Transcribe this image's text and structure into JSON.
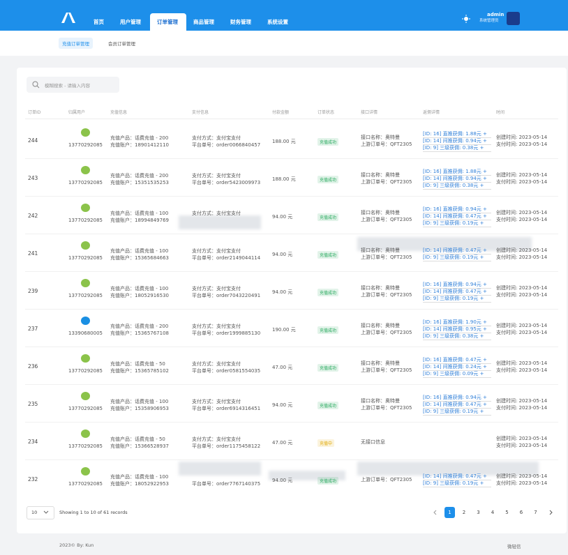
{
  "nav": {
    "menu": [
      "首页",
      "用户管理",
      "订单管理",
      "商品管理",
      "财务管理",
      "系统设置"
    ],
    "active": 2,
    "user": "admin",
    "role": "系统管理员"
  },
  "tabs": [
    "充值订单管理",
    "会员订单管理"
  ],
  "active_tab": 0,
  "search": "模糊搜索 - 请输入内容",
  "headers": [
    "订单ID",
    "归属用户",
    "充值信息",
    "支付信息",
    "付款金额",
    "订单状态",
    "接口详情",
    "返佣详情",
    "时间"
  ],
  "rows": [
    {
      "id": "244",
      "user": "13770292085",
      "icon_color": "#8bc34a",
      "product": "充值产品：话费充值 - 200",
      "account": "充值账户：18901412110",
      "pay": "支付方式：支付宝支付",
      "order": "平台单号：order0066840457",
      "amount": "188.00 元",
      "status": "充值成功",
      "status_color": "#22a85a",
      "api": [
        "接口名称：奥特曼",
        "上游订单号：QFT2305"
      ],
      "commission": [
        "[ID: 16] 直推获佣: 1.88元 +",
        "[ID: 14] 间推获佣: 0.94元 +",
        "[ID: 9] 三级获佣: 0.38元 +"
      ],
      "time": [
        "创建时间: 2023-05-14",
        "支付时间: 2023-05-14"
      ]
    },
    {
      "id": "243",
      "user": "13770292085",
      "icon_color": "#8bc34a",
      "product": "充值产品：话费充值 - 200",
      "account": "充值账户：15351535253",
      "pay": "支付方式：支付宝支付",
      "order": "平台单号：order5423009973",
      "amount": "188.00 元",
      "status": "充值成功",
      "status_color": "#22a85a",
      "api": [
        "接口名称：奥特曼",
        "上游订单号：QFT2305"
      ],
      "commission": [
        "[ID: 16] 直推获佣: 1.88元 +",
        "[ID: 14] 间推获佣: 0.94元 +",
        "[ID: 9] 三级获佣: 0.38元 +"
      ],
      "time": [
        "创建时间: 2023-05-14",
        "支付时间: 2023-05-14"
      ]
    },
    {
      "id": "242",
      "user": "13770292085",
      "icon_color": "#8bc34a",
      "product": "充值产品：话费充值 - 100",
      "account": "充值账户：18994849769",
      "pay": "支付方式：支付宝支付",
      "amount": "94.00 元",
      "status": "充值成功",
      "status_color": "#22a85a",
      "api": [
        "接口名称：奥特曼",
        "上游订单号：QFT2305"
      ],
      "commission": [
        "[ID: 16] 直推获佣: 0.94元 +",
        "[ID: 14] 间推获佣: 0.47元 +",
        "[ID: 9] 三级获佣: 0.19元 +"
      ],
      "time": [
        "创建时间: 2023-05-14",
        "支付时间: 2023-05-14"
      ]
    },
    {
      "id": "241",
      "user": "13770292085",
      "icon_color": "#8bc34a",
      "product": "充值产品：话费充值 - 100",
      "account": "充值账户：15365684663",
      "pay": "支付方式：支付宝支付",
      "order": "平台单号：order2149044114",
      "amount": "94.00 元",
      "status": "充值成功",
      "status_color": "#22a85a",
      "api": [
        "接口名称：奥特曼",
        "上游订单号：QFT2305"
      ],
      "commission": [
        "[ID: 14] 间推获佣: 0.47元 +",
        "[ID: 9] 三级获佣: 0.19元 +"
      ],
      "time": [
        "创建时间: 2023-05-14",
        "支付时间: 2023-05-14"
      ]
    },
    {
      "id": "239",
      "user": "13770292085",
      "icon_color": "#8bc34a",
      "product": "充值产品：话费充值 - 100",
      "account": "充值账户：18052916530",
      "pay": "支付方式：支付宝支付",
      "order": "平台单号：order7043220491",
      "amount": "94.00 元",
      "status": "充值成功",
      "status_color": "#22a85a",
      "api": [
        "接口名称：奥特曼",
        "上游订单号：QFT2305"
      ],
      "commission": [
        "[ID: 16] 直推获佣: 0.94元 +",
        "[ID: 14] 间推获佣: 0.47元 +",
        "[ID: 9] 三级获佣: 0.19元 +"
      ],
      "time": [
        "创建时间: 2023-05-14",
        "支付时间: 2023-05-14"
      ]
    },
    {
      "id": "237",
      "user": "13390680005",
      "icon_color": "#1a8fe3",
      "product": "充值产品：话费充值 - 200",
      "account": "充值账户：15365767108",
      "pay": "支付方式：支付宝支付",
      "order": "平台单号：order1999885130",
      "amount": "190.00 元",
      "status": "充值成功",
      "status_color": "#22a85a",
      "api": [
        "接口名称：奥特曼",
        "上游订单号：QFT2305"
      ],
      "commission": [
        "[ID: 16] 直推获佣: 1.90元 +",
        "[ID: 14] 间推获佣: 0.95元 +",
        "[ID: 9] 三级获佣: 0.38元 +"
      ],
      "time": [
        "创建时间: 2023-05-14",
        "支付时间: 2023-05-14"
      ]
    },
    {
      "id": "236",
      "user": "13770292085",
      "icon_color": "#8bc34a",
      "product": "充值产品：话费充值 - 50",
      "account": "充值账户：15365785102",
      "pay": "支付方式：支付宝支付",
      "order": "平台单号：order0581554035",
      "amount": "47.00 元",
      "status": "充值成功",
      "status_color": "#22a85a",
      "api": [
        "接口名称：奥特曼",
        "上游订单号：QFT2305"
      ],
      "commission": [
        "[ID: 16] 直推获佣: 0.47元 +",
        "[ID: 14] 间推获佣: 0.24元 +",
        "[ID: 9] 三级获佣: 0.09元 +"
      ],
      "time": [
        "创建时间: 2023-05-14",
        "支付时间: 2023-05-14"
      ]
    },
    {
      "id": "235",
      "user": "13770292085",
      "icon_color": "#8bc34a",
      "product": "充值产品：话费充值 - 100",
      "account": "充值账户：15358906953",
      "pay": "支付方式：支付宝支付",
      "order": "平台单号：order6914316451",
      "amount": "94.00 元",
      "status": "充值成功",
      "status_color": "#22a85a",
      "api": [
        "接口名称：奥特曼",
        "上游订单号：QFT2305"
      ],
      "commission": [
        "[ID: 16] 直推获佣: 0.94元 +",
        "[ID: 14] 间推获佣: 0.47元 +",
        "[ID: 9] 三级获佣: 0.19元 +"
      ],
      "time": [
        "创建时间: 2023-05-14",
        "支付时间: 2023-05-14"
      ]
    },
    {
      "id": "234",
      "user": "13770292085",
      "icon_color": "#8bc34a",
      "product": "充值产品：话费充值 - 50",
      "account": "充值账户：15366528937",
      "pay": "支付方式：支付宝支付",
      "order": "平台单号：order1175458122",
      "amount": "47.00 元",
      "status": "充值中",
      "status_color": "#e0a800",
      "api": [
        "无接口信息"
      ],
      "commission": [],
      "time": [
        "创建时间: 2023-05-14",
        "支付时间: 2023-05-14"
      ]
    },
    {
      "id": "232",
      "user": "13770292085",
      "icon_color": "#8bc34a",
      "product": "充值产品：话费充值 - 100",
      "account": "充值账户：18052922953",
      "order": "平台单号：order7767140375",
      "amount": "94.00 元",
      "status": "充值成功",
      "status_color": "#22a85a",
      "api": [
        "上游订单号：QFT2305"
      ],
      "commission": [
        "[ID: 14] 间推获佣: 0.47元 +",
        "[ID: 9] 三级获佣: 0.19元 +"
      ],
      "time": [
        "创建时间: 2023-05-14",
        "支付时间: 2023-05-14"
      ]
    }
  ],
  "pagination": {
    "page_size": "10",
    "summary": "Showing 1 to 10 of 61 records",
    "pages": [
      1,
      2,
      3,
      4,
      5,
      6,
      7
    ],
    "current": 1
  },
  "footer": {
    "left": "2023© By: Kun",
    "right": "微轻信"
  }
}
